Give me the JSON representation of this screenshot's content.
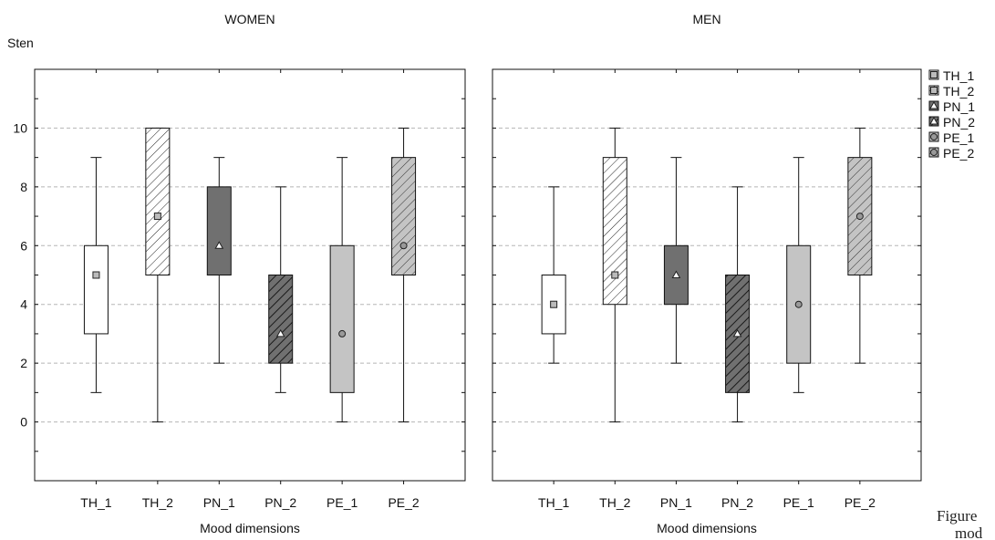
{
  "chart_data": {
    "type": "boxplot",
    "ylabel": "Sten",
    "xlabel": "Mood dimensions",
    "ylim": [
      -2,
      12
    ],
    "yticks": [
      0,
      2,
      4,
      6,
      8,
      10
    ],
    "grid": true,
    "legend_position": "right",
    "categories": [
      "TH_1",
      "TH_2",
      "PN_1",
      "PN_2",
      "PE_1",
      "PE_2"
    ],
    "legend": [
      "TH_1",
      "TH_2",
      "PN_1",
      "PN_2",
      "PE_1",
      "PE_2"
    ],
    "styles": [
      {
        "fill": "#ffffff",
        "hatch": "none",
        "marker": "square"
      },
      {
        "fill": "#ffffff",
        "hatch": "#222222",
        "marker": "square"
      },
      {
        "fill": "#707070",
        "hatch": "none",
        "marker": "triangle"
      },
      {
        "fill": "#707070",
        "hatch": "#1a1a1a",
        "marker": "triangle"
      },
      {
        "fill": "#c4c4c4",
        "hatch": "none",
        "marker": "circle"
      },
      {
        "fill": "#c4c4c4",
        "hatch": "#333333",
        "marker": "circle"
      }
    ],
    "panels": [
      {
        "title": "WOMEN",
        "boxes": [
          {
            "min": 1,
            "q1": 3,
            "median": 5,
            "q3": 6,
            "max": 9
          },
          {
            "min": 0,
            "q1": 5,
            "median": 7,
            "q3": 10,
            "max": 10
          },
          {
            "min": 2,
            "q1": 5,
            "median": 6,
            "q3": 8,
            "max": 9
          },
          {
            "min": 1,
            "q1": 2,
            "median": 3,
            "q3": 5,
            "max": 8
          },
          {
            "min": 0,
            "q1": 1,
            "median": 3,
            "q3": 6,
            "max": 9
          },
          {
            "min": 0,
            "q1": 5,
            "median": 6,
            "q3": 9,
            "max": 10
          }
        ]
      },
      {
        "title": "MEN",
        "boxes": [
          {
            "min": 2,
            "q1": 3,
            "median": 4,
            "q3": 5,
            "max": 8
          },
          {
            "min": 0,
            "q1": 4,
            "median": 5,
            "q3": 9,
            "max": 10
          },
          {
            "min": 2,
            "q1": 4,
            "median": 5,
            "q3": 6,
            "max": 9
          },
          {
            "min": 0,
            "q1": 1,
            "median": 3,
            "q3": 5,
            "max": 8
          },
          {
            "min": 1,
            "q1": 2,
            "median": 4,
            "q3": 6,
            "max": 9
          },
          {
            "min": 2,
            "q1": 5,
            "median": 7,
            "q3": 9,
            "max": 10
          }
        ]
      }
    ]
  },
  "caption": {
    "line1": "Figure",
    "line2": "mod"
  }
}
